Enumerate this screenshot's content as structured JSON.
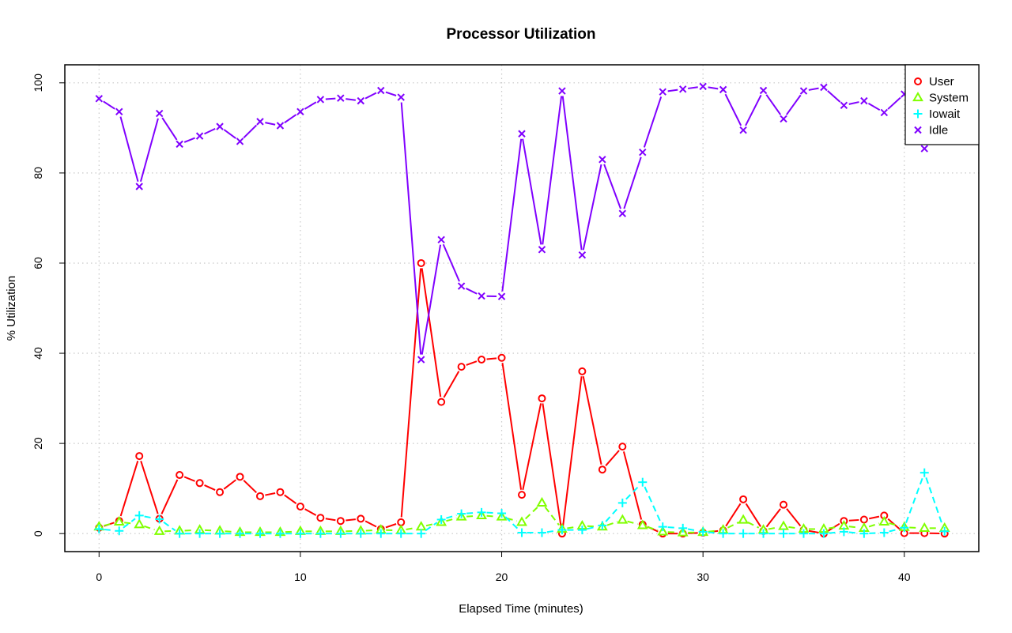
{
  "chart_data": {
    "type": "line",
    "title": "Processor Utilization",
    "xlabel": "Elapsed Time (minutes)",
    "ylabel": "% Utilization",
    "xlim": [
      -1.7,
      43.7
    ],
    "ylim": [
      -4,
      104
    ],
    "x_ticks": [
      0,
      10,
      20,
      30,
      40
    ],
    "y_ticks": [
      0,
      20,
      40,
      60,
      80,
      100
    ],
    "grid": true,
    "legend_position": "top-right",
    "x": [
      0,
      1,
      2,
      3,
      4,
      5,
      6,
      7,
      8,
      9,
      10,
      11,
      12,
      13,
      14,
      15,
      16,
      17,
      18,
      19,
      20,
      21,
      22,
      23,
      24,
      25,
      26,
      27,
      28,
      29,
      30,
      31,
      32,
      33,
      34,
      35,
      36,
      37,
      38,
      39,
      40,
      41,
      42
    ],
    "series": [
      {
        "name": "User",
        "color": "#ff0000",
        "marker": "circle",
        "line": "solid",
        "values": [
          1.3,
          2.8,
          17.2,
          3.3,
          13,
          11.2,
          9.2,
          12.6,
          8.3,
          9.2,
          6,
          3.5,
          2.8,
          3.3,
          1,
          2.5,
          60,
          29.2,
          37,
          38.6,
          39,
          8.6,
          30,
          0,
          36,
          14.2,
          19.3,
          2,
          0,
          0,
          0.2,
          0.7,
          7.6,
          0.6,
          6.4,
          0.8,
          0,
          2.8,
          3.1,
          4,
          0.1,
          0.1,
          0
        ]
      },
      {
        "name": "System",
        "color": "#80ff00",
        "marker": "triangle",
        "line": "dashed",
        "values": [
          1.5,
          2.6,
          2,
          0.5,
          0.6,
          0.8,
          0.6,
          0.3,
          0.3,
          0.3,
          0.5,
          0.5,
          0.5,
          0.6,
          0.8,
          0.7,
          1.5,
          2.5,
          3.7,
          4,
          3.7,
          2.5,
          6.8,
          1,
          1.7,
          1.5,
          3,
          1.8,
          0.4,
          0.2,
          0.3,
          0.8,
          3,
          0.8,
          1.6,
          1,
          1,
          1.7,
          1.2,
          2.6,
          1.4,
          1.2,
          1.2
        ]
      },
      {
        "name": "Iowait",
        "color": "#00ffff",
        "marker": "plus",
        "line": "dashed",
        "values": [
          1,
          0.6,
          4,
          3.2,
          0,
          0,
          0,
          0,
          0,
          0,
          0,
          0,
          0,
          0,
          0,
          0,
          0,
          3.1,
          4.4,
          4.7,
          4.5,
          0.2,
          0.2,
          0.8,
          0.8,
          1.8,
          6.8,
          11.4,
          1.5,
          1.2,
          0.4,
          0,
          0,
          0,
          0,
          0,
          0,
          0.4,
          0,
          0.2,
          1.3,
          13.5,
          0.5
        ]
      },
      {
        "name": "Idle",
        "color": "#8000ff",
        "marker": "x",
        "line": "solid",
        "values": [
          96.5,
          93.6,
          77,
          93.2,
          86.4,
          88.2,
          90.3,
          87,
          91.4,
          90.5,
          93.6,
          96.3,
          96.6,
          96,
          98.3,
          96.8,
          38.6,
          65.2,
          54.9,
          52.7,
          52.6,
          88.7,
          63,
          98.2,
          61.8,
          83,
          71,
          84.6,
          98,
          98.6,
          99.2,
          98.5,
          89.5,
          98.3,
          92,
          98.2,
          99,
          95,
          96,
          93.4,
          97.5,
          85.4,
          98
        ]
      }
    ]
  }
}
